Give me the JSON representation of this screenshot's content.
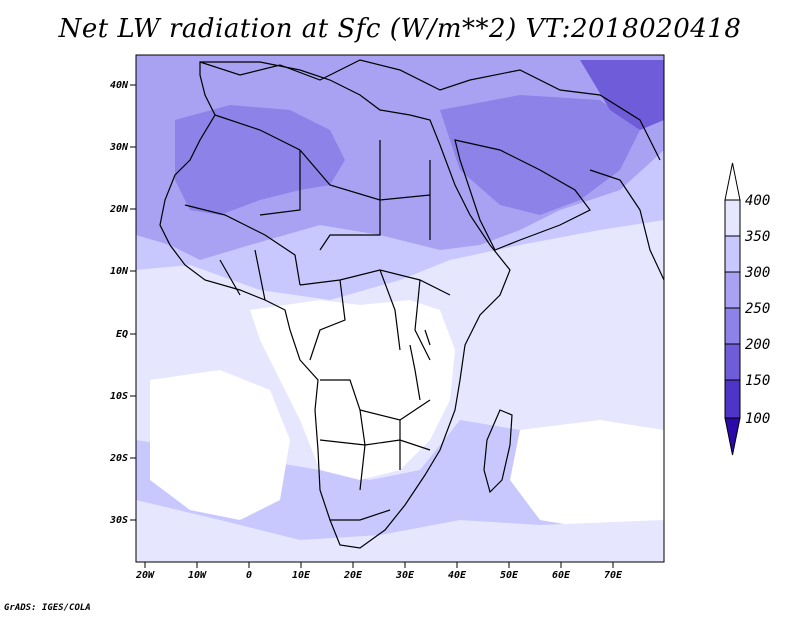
{
  "title": "Net LW radiation at Sfc (W/m**2) VT:2018020418",
  "credit": "GrADS: IGES/COLA",
  "axes": {
    "lon_ticks": [
      "20W",
      "10W",
      "0",
      "10E",
      "20E",
      "30E",
      "40E",
      "50E",
      "60E",
      "70E"
    ],
    "lat_ticks": [
      "40N",
      "30N",
      "20N",
      "10N",
      "EQ",
      "10S",
      "20S",
      "30S"
    ]
  },
  "colorbar": {
    "levels": [
      "400",
      "350",
      "300",
      "250",
      "200",
      "150",
      "100"
    ],
    "colors": [
      "#e6e6ff",
      "#c8c8ff",
      "#a9a2f3",
      "#8c82e8",
      "#6f5cd9",
      "#4f34c8",
      "#2a0aa8"
    ]
  },
  "palette": {
    "white": "#ffffff",
    "lightest": "#e6e6ff",
    "light": "#c8c8ff",
    "medium": "#a9a2f3",
    "dark": "#8c82e8",
    "darker": "#6f5cd9",
    "border": "#000000"
  }
}
